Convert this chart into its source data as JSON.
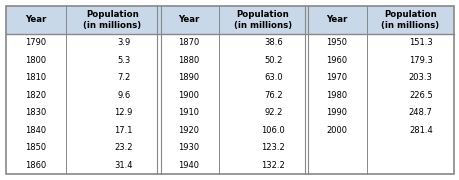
{
  "col1_years": [
    1790,
    1800,
    1810,
    1820,
    1830,
    1840,
    1850,
    1860
  ],
  "col1_pop": [
    "3.9",
    "5.3",
    "7.2",
    "9.6",
    "12.9",
    "17.1",
    "23.2",
    "31.4"
  ],
  "col2_years": [
    1870,
    1880,
    1890,
    1900,
    1910,
    1920,
    1930,
    1940
  ],
  "col2_pop": [
    "38.6",
    "50.2",
    "63.0",
    "76.2",
    "92.2",
    "106.0",
    "123.2",
    "132.2"
  ],
  "col3_years": [
    1950,
    1960,
    1970,
    1980,
    1990,
    2000
  ],
  "col3_pop": [
    "151.3",
    "179.3",
    "203.3",
    "226.5",
    "248.7",
    "281.4"
  ],
  "header_bg": "#c8d8e8",
  "body_bg": "#ffffff",
  "border_color": "#888888",
  "text_color": "#000000",
  "header_label_year": "Year",
  "header_label_pop": "Population\n(in millions)",
  "n_rows": 8,
  "fontsize": 6.0,
  "header_fontsize": 6.2
}
